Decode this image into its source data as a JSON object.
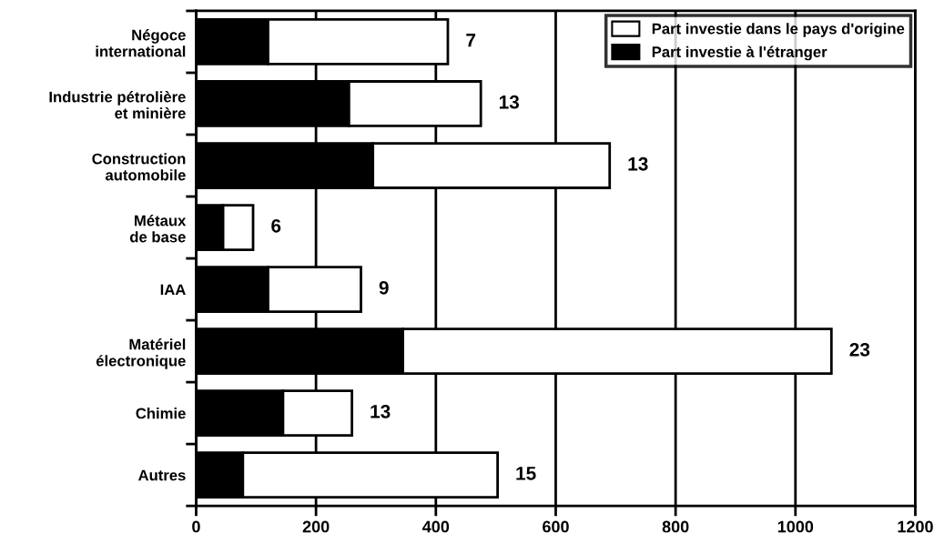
{
  "chart_data": {
    "type": "bar",
    "orientation": "horizontal",
    "stacked": true,
    "categories": [
      "Négoce\ninternational",
      "Industrie pétrolière\net minière",
      "Construction\nautomobile",
      "Métaux\nde base",
      "IAA",
      "Matériel\nélectronique",
      "Chimie",
      "Autres"
    ],
    "series": [
      {
        "name": "Part investie à l'étranger",
        "color": "#000000",
        "values": [
          120,
          255,
          295,
          45,
          120,
          345,
          145,
          78
        ]
      },
      {
        "name": "Part investie dans le pays d'origine",
        "color": "#ffffff",
        "values": [
          300,
          220,
          395,
          50,
          155,
          715,
          115,
          425
        ]
      }
    ],
    "xlim": [
      0,
      1200
    ],
    "xticks": [
      0,
      200,
      400,
      600,
      800,
      1000,
      1200
    ],
    "grid": "x",
    "legend": "top right",
    "annotations": [
      {
        "text": "7",
        "x": 420,
        "y": "Négoce\ninternational"
      },
      {
        "text": "13",
        "x": 475,
        "y": "Industrie pétrolière\net minière"
      },
      {
        "text": "13",
        "x": 690,
        "y": "Construction\nautomobile"
      },
      {
        "text": "6",
        "x": 95,
        "y": "Métaux\nde base"
      },
      {
        "text": "9",
        "x": 275,
        "y": "IAA"
      },
      {
        "text": "23",
        "x": 1060,
        "y": "Matériel\nélectronique"
      },
      {
        "text": "13",
        "x": 260,
        "y": "Chimie"
      },
      {
        "text": "15",
        "x": 503,
        "y": "Autres"
      }
    ]
  }
}
